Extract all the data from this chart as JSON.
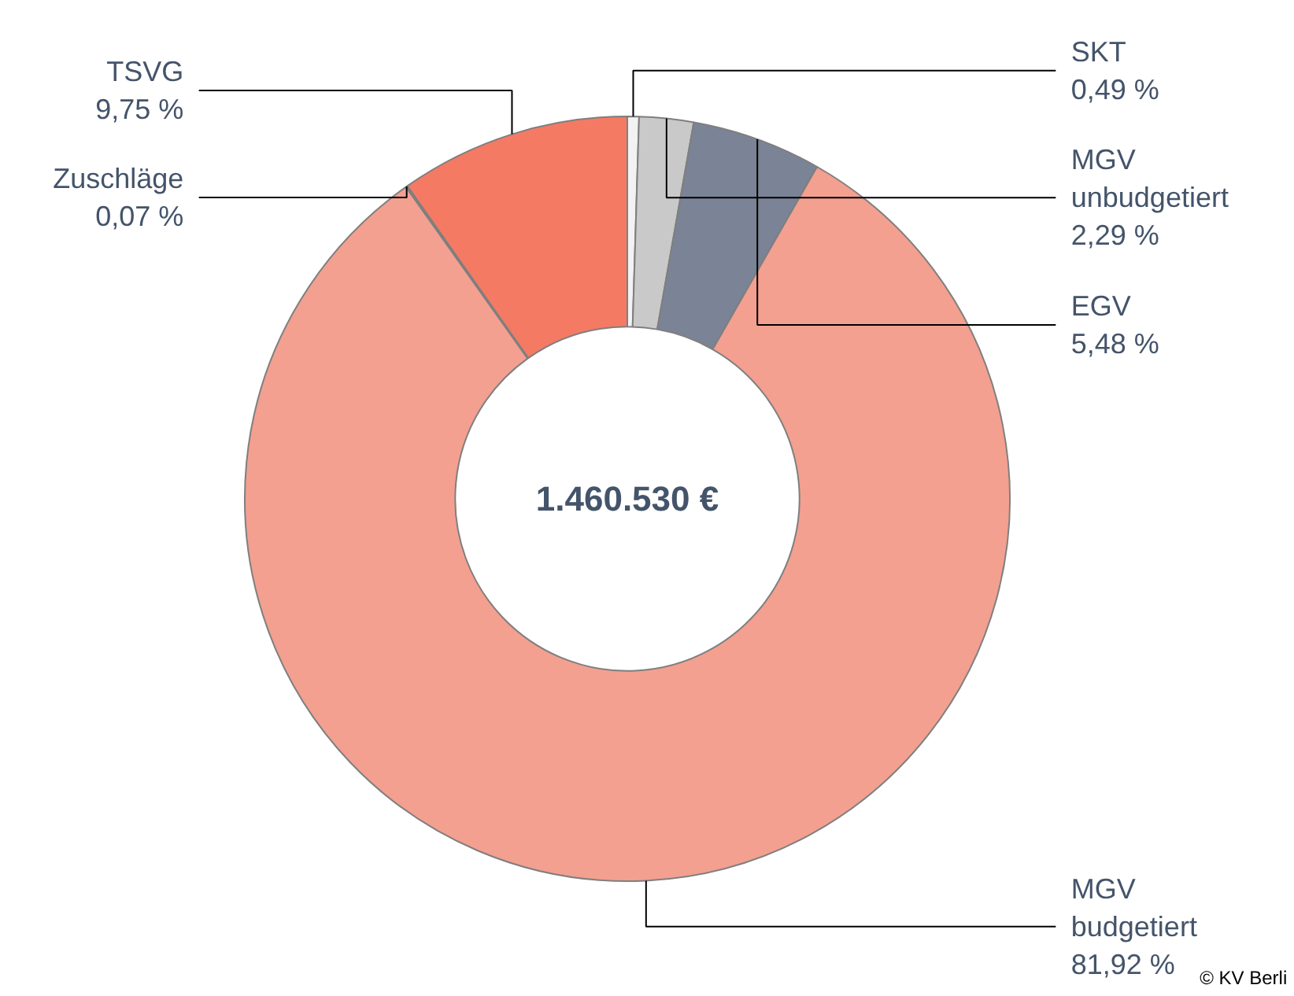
{
  "chart_data": {
    "type": "donut",
    "categories": [
      "SKT",
      "MGV unbudgetiert",
      "EGV",
      "MGV budgetiert",
      "Zuschläge",
      "TSVG"
    ],
    "values": [
      0.49,
      2.29,
      5.48,
      81.92,
      0.07,
      9.75
    ],
    "colors": [
      "#f2f2f2",
      "#c9c9c9",
      "#7b8396",
      "#f3a090",
      "#8c8c8c",
      "#f47a64"
    ],
    "value_labels": [
      "0,49 %",
      "2,29 %",
      "5,48 %",
      "81,92 %",
      "0,07 %",
      "9,75 %"
    ],
    "annotations": [
      "1.460.530 €",
      "© KV Berli"
    ]
  }
}
